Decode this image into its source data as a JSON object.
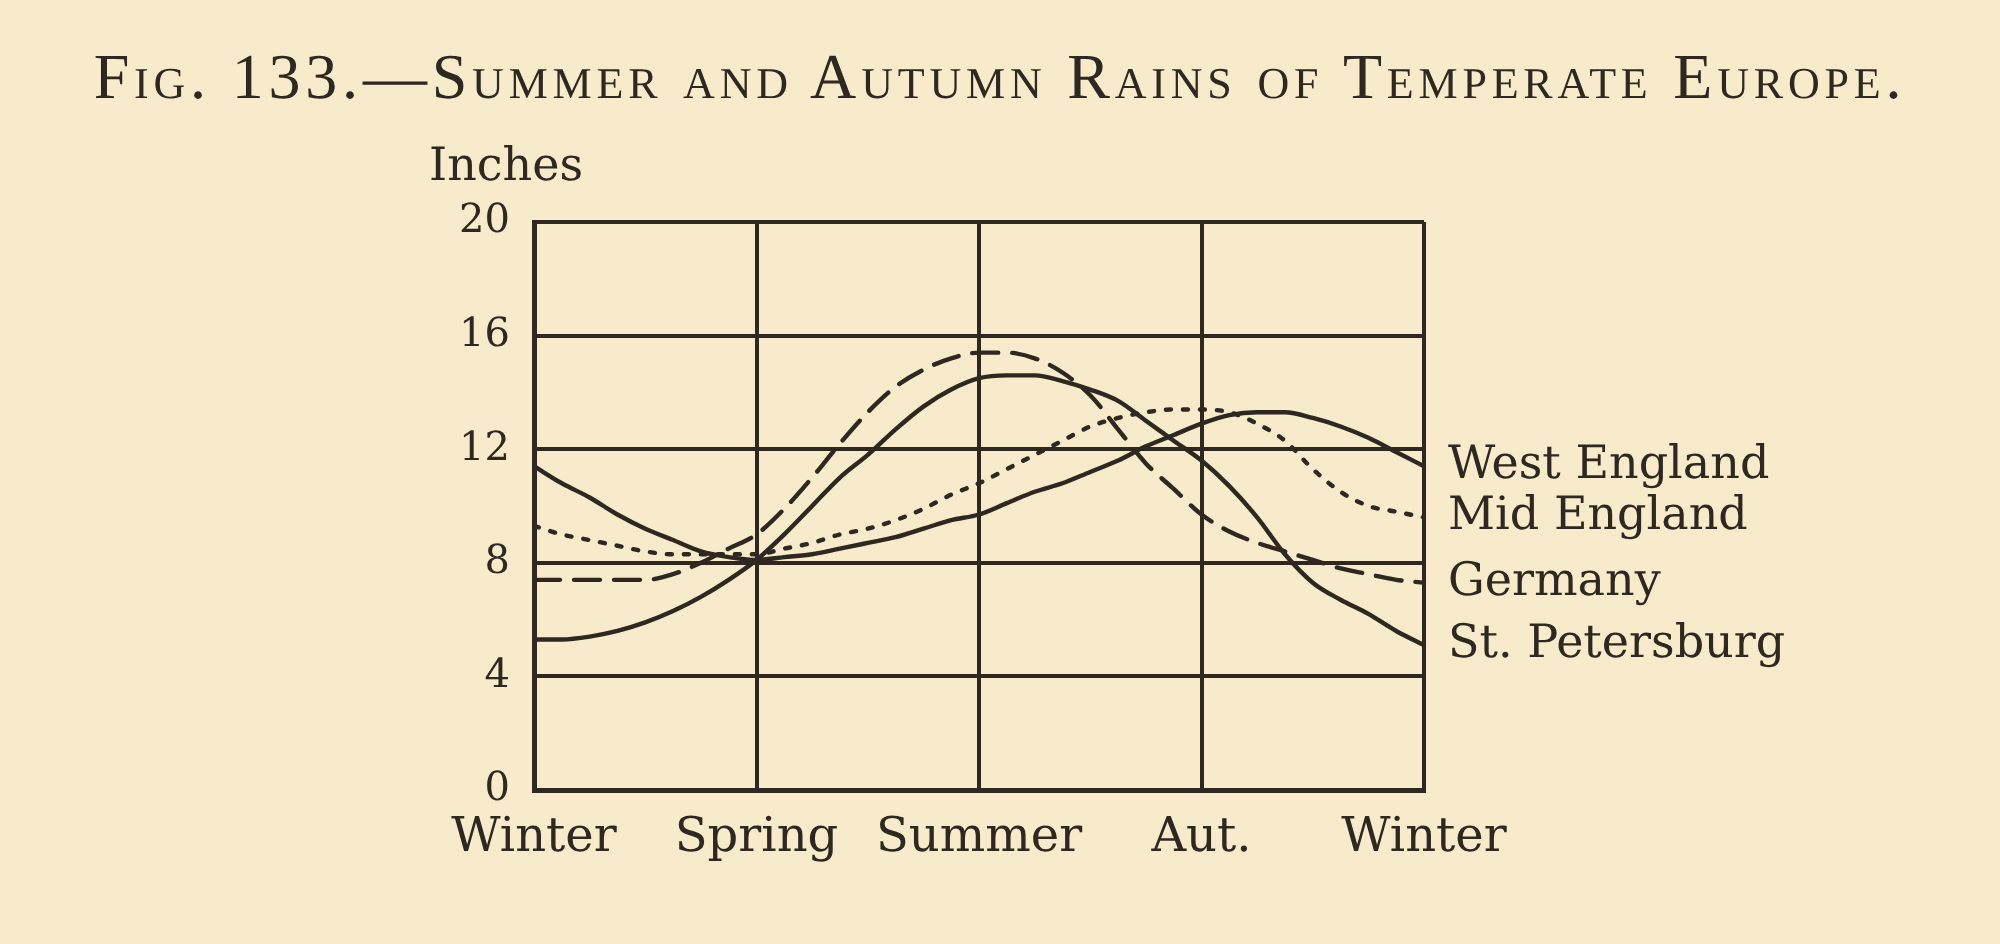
{
  "chart_data": {
    "type": "line",
    "title": "Fig. 133.—Summer and Autumn Rains of Temperate Europe.",
    "ylabel": "Inches",
    "categories": [
      "Winter",
      null,
      null,
      null,
      null,
      null,
      null,
      null,
      "Spring",
      null,
      null,
      null,
      null,
      null,
      null,
      null,
      "Summer",
      null,
      null,
      null,
      null,
      null,
      null,
      null,
      "Aut.",
      null,
      null,
      null,
      null,
      null,
      null,
      null,
      "Winter"
    ],
    "ylim": [
      0,
      20
    ],
    "yticks": [
      0,
      4,
      8,
      12,
      16,
      20
    ],
    "grid": true,
    "legend": false,
    "marker": "none",
    "series": [
      {
        "name": "West England",
        "color": "#2e2820",
        "line_style": "solid",
        "values": [
          11.4,
          10.8,
          10.3,
          9.7,
          9.2,
          8.8,
          8.4,
          8.2,
          8.1,
          8.2,
          8.3,
          8.5,
          8.7,
          8.9,
          9.2,
          9.5,
          9.7,
          10.1,
          10.5,
          10.8,
          11.2,
          11.6,
          12.1,
          12.5,
          12.9,
          13.2,
          13.3,
          13.3,
          13.1,
          12.8,
          12.4,
          11.9,
          11.4
        ]
      },
      {
        "name": "Mid England",
        "color": "#2e2820",
        "line_style": "dotted",
        "values": [
          9.3,
          9,
          8.8,
          8.6,
          8.4,
          8.3,
          8.3,
          8.3,
          8.3,
          8.5,
          8.7,
          9,
          9.2,
          9.5,
          9.9,
          10.4,
          10.8,
          11.3,
          11.8,
          12.3,
          12.8,
          13.1,
          13.3,
          13.4,
          13.4,
          13.3,
          12.9,
          12.3,
          11.3,
          10.5,
          10,
          9.8,
          9.6
        ]
      },
      {
        "name": "Germany",
        "color": "#2e2820",
        "line_style": "dashed",
        "values": [
          7.4,
          7.4,
          7.4,
          7.4,
          7.4,
          7.6,
          8,
          8.5,
          9,
          9.9,
          11,
          12.2,
          13.3,
          14.2,
          14.8,
          15.2,
          15.4,
          15.4,
          15.2,
          14.7,
          13.9,
          12.7,
          11.5,
          10.6,
          9.7,
          9.1,
          8.7,
          8.4,
          8.1,
          7.8,
          7.6,
          7.4,
          7.3
        ]
      },
      {
        "name": "St. Petersburg",
        "color": "#2e2820",
        "line_style": "solid",
        "values": [
          5.3,
          5.3,
          5.4,
          5.6,
          5.9,
          6.3,
          6.8,
          7.4,
          8.1,
          9,
          10,
          11,
          11.8,
          12.7,
          13.5,
          14.1,
          14.5,
          14.6,
          14.6,
          14.4,
          14.1,
          13.7,
          13,
          12.3,
          11.6,
          10.7,
          9.6,
          8.3,
          7.3,
          6.7,
          6.2,
          5.6,
          5.1
        ]
      }
    ]
  }
}
